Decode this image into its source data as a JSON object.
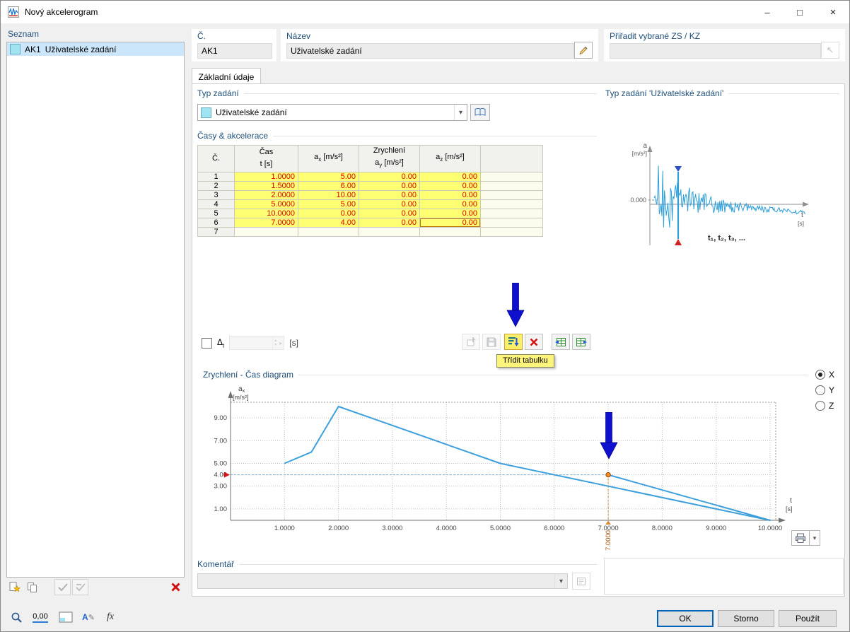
{
  "titlebar": {
    "title": "Nový akcelerogram",
    "minimize_icon": "–",
    "maximize_icon": "□",
    "close_icon": "×"
  },
  "sidebar": {
    "header": "Seznam",
    "items": [
      {
        "id": "AK1",
        "label": "Uživatelské zadání"
      }
    ]
  },
  "header": {
    "number_label": "Č.",
    "number_value": "AK1",
    "name_label": "Název",
    "name_value": "Uživatelské zadání",
    "assign_label": "Přiřadit vybrané ZS / KZ",
    "assign_value": ""
  },
  "tabs": {
    "basic": "Základní údaje"
  },
  "type_section": {
    "caption": "Typ zadání",
    "selected": "Uživatelské zadání"
  },
  "preview": {
    "caption": "Typ zadání 'Uživatelské zadání'",
    "y_axis_label": "a",
    "y_axis_unit": "[m/s²]",
    "zero_label": "0.000",
    "x_axis_label_1": "t",
    "x_axis_label_2": "[s]",
    "points_label": "t₁, t₂, t₃, ..."
  },
  "table_section": {
    "caption": "Časy & akcelerace",
    "header": {
      "no": "Č.",
      "time_top": "Čas",
      "time_bottom": "t [s]",
      "accel_top": "Zrychlení",
      "ax_base": "a",
      "ax_sub": "x",
      "ay_base": "a",
      "ay_sub": "y",
      "az_base": "a",
      "az_sub": "z",
      "unit": "[m/s²]"
    },
    "rows": [
      {
        "no": "1",
        "t": "1.0000",
        "ax": "5.00",
        "ay": "0.00",
        "az": "0.00"
      },
      {
        "no": "2",
        "t": "1.5000",
        "ax": "6.00",
        "ay": "0.00",
        "az": "0.00"
      },
      {
        "no": "3",
        "t": "2.0000",
        "ax": "10.00",
        "ay": "0.00",
        "az": "0.00"
      },
      {
        "no": "4",
        "t": "5.0000",
        "ax": "5.00",
        "ay": "0.00",
        "az": "0.00"
      },
      {
        "no": "5",
        "t": "10.0000",
        "ax": "0.00",
        "ay": "0.00",
        "az": "0.00"
      },
      {
        "no": "6",
        "t": "7.0000",
        "ax": "4.00",
        "ay": "0.00",
        "az": "0.00"
      },
      {
        "no": "7",
        "t": "",
        "ax": "",
        "ay": "",
        "az": ""
      }
    ],
    "dt_label_base": "Δ",
    "dt_label_sub": "t",
    "dt_value": "",
    "dt_unit": "[s]"
  },
  "table_toolbar": {
    "tooltip": "Třídit tabulku"
  },
  "chart_section": {
    "caption": "Zrychlení - Čas diagram"
  },
  "axis_selector": {
    "options": [
      "X",
      "Y",
      "Z"
    ],
    "selected": "X"
  },
  "comment": {
    "caption": "Komentář",
    "value": ""
  },
  "footer": {
    "ok": "OK",
    "cancel": "Storno",
    "apply": "Použít"
  },
  "status_icons": {
    "decimal_label": "0,00",
    "formula_label": "fx"
  },
  "icons": {
    "chevron_down": "▾",
    "pick_arrow": "↖",
    "spin_up": "▴",
    "spin_down": "▾",
    "spin_right": "▸",
    "pencil_glyph": "✎",
    "letter_a": "A"
  },
  "colors": {
    "caption_blue": "#1e4e79",
    "cell_yellow": "#ffff73",
    "value_red": "#dd0000",
    "chart_line": "#3da0dc",
    "arrow_blue": "#0f10cf",
    "swatch_cyan": "#a0e4f2",
    "accent": "#0065b8"
  },
  "chart_data": {
    "type": "line",
    "title": "Zrychlení - Čas diagram",
    "series": [
      {
        "name": "ax",
        "x": [
          1.0,
          1.5,
          2.0,
          5.0,
          10.0,
          7.0
        ],
        "y": [
          5.0,
          6.0,
          10.0,
          5.0,
          0.0,
          4.0
        ]
      }
    ],
    "xlabel": "t [s]",
    "ylabel": "ax [m/s²]",
    "xlim": [
      0,
      10.5
    ],
    "ylim": [
      0,
      10.5
    ],
    "grid": true,
    "line_color": "#3da0dc",
    "x_ticks": [
      {
        "v": 1,
        "label": "1.0000"
      },
      {
        "v": 2,
        "label": "2.0000"
      },
      {
        "v": 3,
        "label": "3.0000"
      },
      {
        "v": 4,
        "label": "4.0000"
      },
      {
        "v": 5,
        "label": "5.0000"
      },
      {
        "v": 6,
        "label": "6.0000"
      },
      {
        "v": 7,
        "label": "7.0000"
      },
      {
        "v": 8,
        "label": "8.0000"
      },
      {
        "v": 9,
        "label": "9.0000"
      },
      {
        "v": 10,
        "label": "10.0000"
      }
    ],
    "y_ticks": [
      {
        "v": 1,
        "label": "1.00"
      },
      {
        "v": 3,
        "label": "3.00"
      },
      {
        "v": 4,
        "label": "4.00"
      },
      {
        "v": 5,
        "label": "5.00"
      },
      {
        "v": 7,
        "label": "7.00"
      },
      {
        "v": 9,
        "label": "9.00"
      }
    ],
    "marker": {
      "x": 7.0,
      "y": 4.0,
      "label": "7.0000"
    },
    "ylabel_base": "a",
    "ylabel_sub": "x",
    "ylabel_unit": "[m/s²]",
    "xlabel_1": "t",
    "xlabel_2": "[s]"
  }
}
